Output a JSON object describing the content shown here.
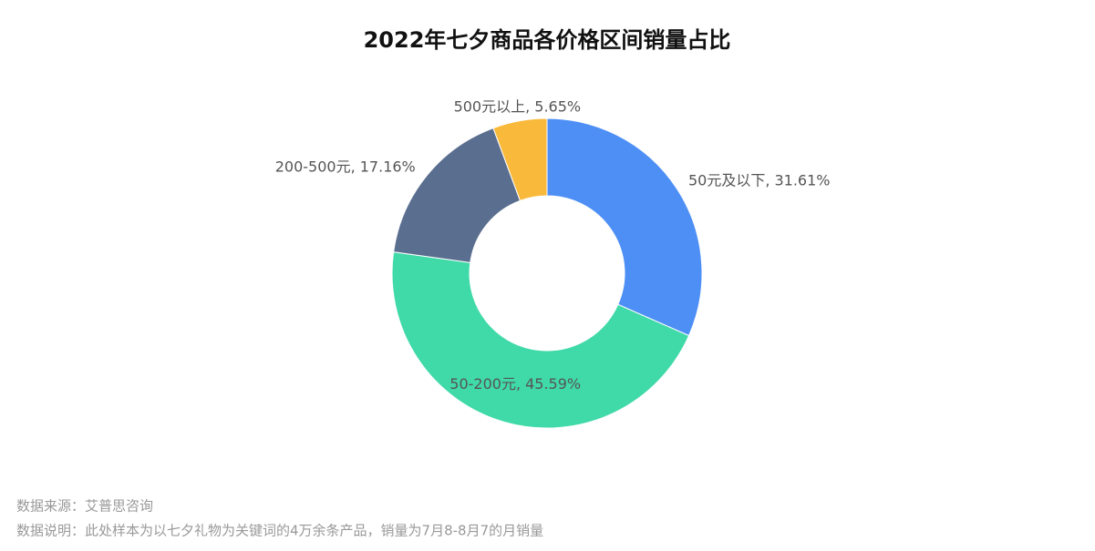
{
  "chart_data": {
    "type": "pie",
    "title": "2022年七夕商品各价格区间销量占比",
    "values": [
      31.61,
      45.59,
      17.16,
      5.65
    ],
    "value_labels": [
      "50元及以下, 31.61%",
      "50-200元, 45.59%",
      "200-500元, 17.16%",
      "500元以上, 5.65%"
    ],
    "colors": [
      "#4d8ff5",
      "#40d9a8",
      "#5a6e8f",
      "#f9b93a"
    ],
    "source": "数据来源：艾普思咨询",
    "note": "数据说明：此处样本为以七夕礼物为关键词的4万余条产品，销量为7月8-8月7的月销量"
  }
}
